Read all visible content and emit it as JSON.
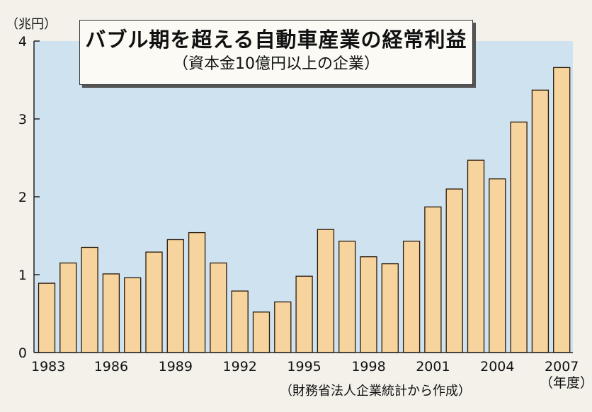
{
  "title": "バブル期を超える自動車産業の経常利益",
  "subtitle": "（資本金10億円以上の企業）",
  "source": "（財務省法人企業統計から作成）",
  "y_unit": "（兆円）",
  "x_unit": "（年度）",
  "colors": {
    "bar_fill": "#f7d39d",
    "bar_edge": "#2a1a0a",
    "plot_background": "#cfe2f0",
    "page_background": "#f3f1ea"
  },
  "chart_data": {
    "type": "bar",
    "categories": [
      "1983",
      "1984",
      "1985",
      "1986",
      "1987",
      "1988",
      "1989",
      "1990",
      "1991",
      "1992",
      "1993",
      "1994",
      "1995",
      "1996",
      "1997",
      "1998",
      "1999",
      "2000",
      "2001",
      "2002",
      "2003",
      "2004",
      "2005",
      "2006",
      "2007"
    ],
    "x_tick_labels": [
      "1983",
      "1986",
      "1989",
      "1992",
      "1995",
      "1998",
      "2001",
      "2004",
      "2007"
    ],
    "values": [
      0.89,
      1.15,
      1.35,
      1.01,
      0.96,
      1.29,
      1.45,
      1.54,
      1.15,
      0.79,
      0.52,
      0.65,
      0.98,
      1.58,
      1.43,
      1.23,
      1.14,
      1.43,
      1.87,
      2.1,
      2.47,
      2.23,
      2.96,
      3.37,
      3.66
    ],
    "y_ticks": [
      0,
      1,
      2,
      3,
      4
    ],
    "ylim": [
      0,
      4
    ],
    "grid": false,
    "legend": "none"
  }
}
